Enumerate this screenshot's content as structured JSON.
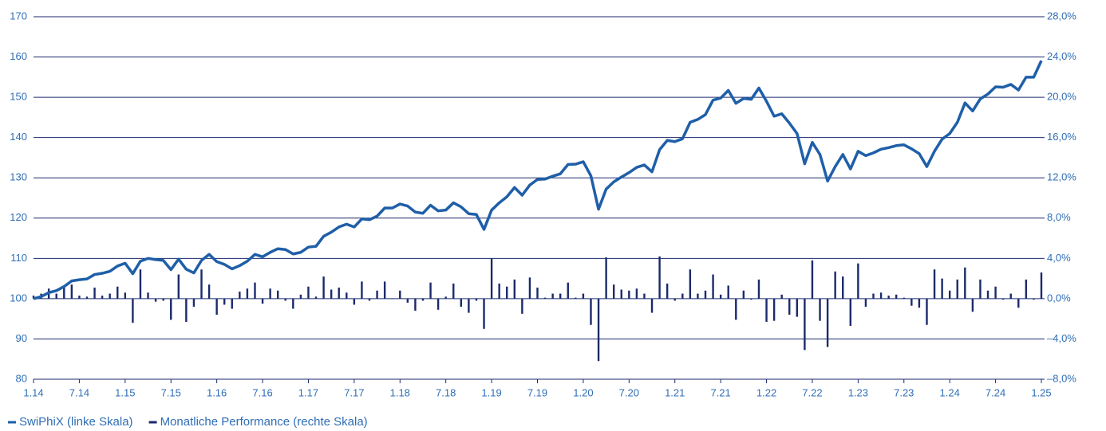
{
  "chart_data": {
    "type": "combo",
    "categories": [
      "1.14",
      null,
      null,
      null,
      null,
      null,
      "7.14",
      null,
      null,
      null,
      null,
      null,
      "1.15",
      null,
      null,
      null,
      null,
      null,
      "7.15",
      null,
      null,
      null,
      null,
      null,
      "1.16",
      null,
      null,
      null,
      null,
      null,
      "7.16",
      null,
      null,
      null,
      null,
      null,
      "1.17",
      null,
      null,
      null,
      null,
      null,
      "7.17",
      null,
      null,
      null,
      null,
      null,
      "1.18",
      null,
      null,
      null,
      null,
      null,
      "7.18",
      null,
      null,
      null,
      null,
      null,
      "1.19",
      null,
      null,
      null,
      null,
      null,
      "7.19",
      null,
      null,
      null,
      null,
      null,
      "1.20",
      null,
      null,
      null,
      null,
      null,
      "7.20",
      null,
      null,
      null,
      null,
      null,
      "1.21",
      null,
      null,
      null,
      null,
      null,
      "7.21",
      null,
      null,
      null,
      null,
      null,
      "1.22",
      null,
      null,
      null,
      null,
      null,
      "7.22",
      null,
      null,
      null,
      null,
      null,
      "1.23",
      null,
      null,
      null,
      null,
      null,
      "7.23",
      null,
      null,
      null,
      null,
      null,
      "1.24",
      null,
      null,
      null,
      null,
      null,
      "7.24",
      null,
      null,
      null,
      null,
      null,
      "1.25"
    ],
    "series": [
      {
        "name": "SwiPhiX (linke Skala)",
        "type": "line",
        "axis": "y",
        "color": "#1f5fa8",
        "values": [
          100,
          100.5,
          101.5,
          102,
          103,
          104.4,
          104.7,
          104.9,
          106,
          106.3,
          106.8,
          108.1,
          108.8,
          106.2,
          109.3,
          110,
          109.7,
          109.5,
          107.2,
          109.8,
          107.3,
          106.4,
          109.5,
          111,
          109.2,
          108.5,
          107.4,
          108.2,
          109.3,
          111,
          110.4,
          111.5,
          112.4,
          112.2,
          111.1,
          111.5,
          112.8,
          113,
          115.5,
          116.5,
          117.8,
          118.5,
          117.8,
          119.8,
          119.6,
          120.5,
          122.5,
          122.5,
          123.5,
          123,
          121.5,
          121.2,
          123.2,
          121.8,
          122,
          123.8,
          122.8,
          121.1,
          120.9,
          117.2,
          122,
          123.8,
          125.3,
          127.6,
          125.7,
          128.2,
          129.6,
          129.7,
          130.4,
          131,
          133.3,
          133.4,
          134,
          130.5,
          122.2,
          127.2,
          129,
          130.2,
          131.3,
          132.6,
          133.2,
          131.5,
          137,
          139.3,
          139,
          139.7,
          143.8,
          144.5,
          145.7,
          149.3,
          149.8,
          151.7,
          148.5,
          149.7,
          149.5,
          152.3,
          149,
          145.3,
          145.9,
          143.6,
          141,
          133.5,
          138.8,
          135.8,
          129.2,
          132.8,
          135.8,
          132.2,
          136.6,
          135.5,
          136.2,
          137.1,
          137.5,
          138,
          138.2,
          137.2,
          136,
          132.8,
          136.6,
          139.6,
          141,
          143.8,
          148.6,
          146.6,
          149.6,
          150.8,
          152.6,
          152.5,
          153.2,
          151.8,
          155,
          155,
          159.1
        ]
      },
      {
        "name": "Monatliche Performance (rechte Skala)",
        "type": "bar",
        "axis": "y2",
        "color": "#1c2a6b",
        "values": [
          0.3,
          0.5,
          1.0,
          0.5,
          1.3,
          1.4,
          0.3,
          0.2,
          1.1,
          0.3,
          0.5,
          1.2,
          0.6,
          -2.4,
          2.9,
          0.6,
          -0.3,
          -0.2,
          -2.1,
          2.4,
          -2.3,
          -0.8,
          2.9,
          1.4,
          -1.6,
          -0.6,
          -1.0,
          0.7,
          1.0,
          1.6,
          -0.5,
          1.0,
          0.8,
          -0.2,
          -1.0,
          0.4,
          1.2,
          0.2,
          2.2,
          0.9,
          1.1,
          0.6,
          -0.6,
          1.7,
          -0.2,
          0.8,
          1.7,
          0.0,
          0.8,
          -0.4,
          -1.2,
          -0.2,
          1.6,
          -1.1,
          0.2,
          1.5,
          -0.8,
          -1.4,
          -0.2,
          -3.0,
          4.0,
          1.5,
          1.2,
          1.9,
          -1.5,
          2.1,
          1.1,
          0.1,
          0.5,
          0.5,
          1.6,
          0.1,
          0.5,
          -2.6,
          -6.2,
          4.1,
          1.4,
          0.9,
          0.8,
          1.0,
          0.5,
          -1.4,
          4.2,
          1.5,
          -0.2,
          0.5,
          2.9,
          0.5,
          0.8,
          2.4,
          0.4,
          1.3,
          -2.1,
          0.8,
          -0.1,
          1.9,
          -2.3,
          -2.2,
          0.4,
          -1.6,
          -1.8,
          -5.1,
          3.8,
          -2.2,
          -4.8,
          2.7,
          2.2,
          -2.7,
          3.5,
          -0.8,
          0.5,
          0.6,
          0.3,
          0.4,
          0.1,
          -0.7,
          -0.9,
          -2.6,
          2.9,
          2.0,
          0.8,
          1.9,
          3.1,
          -1.3,
          1.9,
          0.8,
          1.2,
          -0.1,
          0.5,
          -0.9,
          1.9,
          -0.1,
          2.6
        ]
      }
    ],
    "ylim": [
      80,
      170
    ],
    "yticks": [
      80,
      90,
      100,
      110,
      120,
      130,
      140,
      150,
      160,
      170
    ],
    "y2lim": [
      -8,
      28
    ],
    "y2ticks": [
      {
        "value": -8,
        "label": "–8,0%"
      },
      {
        "value": -4,
        "label": "–4,0%"
      },
      {
        "value": 0,
        "label": "0,0%"
      },
      {
        "value": 4,
        "label": "4,0%"
      },
      {
        "value": 8,
        "label": "8,0%"
      },
      {
        "value": 12,
        "label": "12,0%"
      },
      {
        "value": 16,
        "label": "16,0%"
      },
      {
        "value": 20,
        "label": "20,0%"
      },
      {
        "value": 24,
        "label": "24,0%"
      },
      {
        "value": 28,
        "label": "28,0%"
      }
    ],
    "grid": true,
    "legend": "bottom-left"
  }
}
